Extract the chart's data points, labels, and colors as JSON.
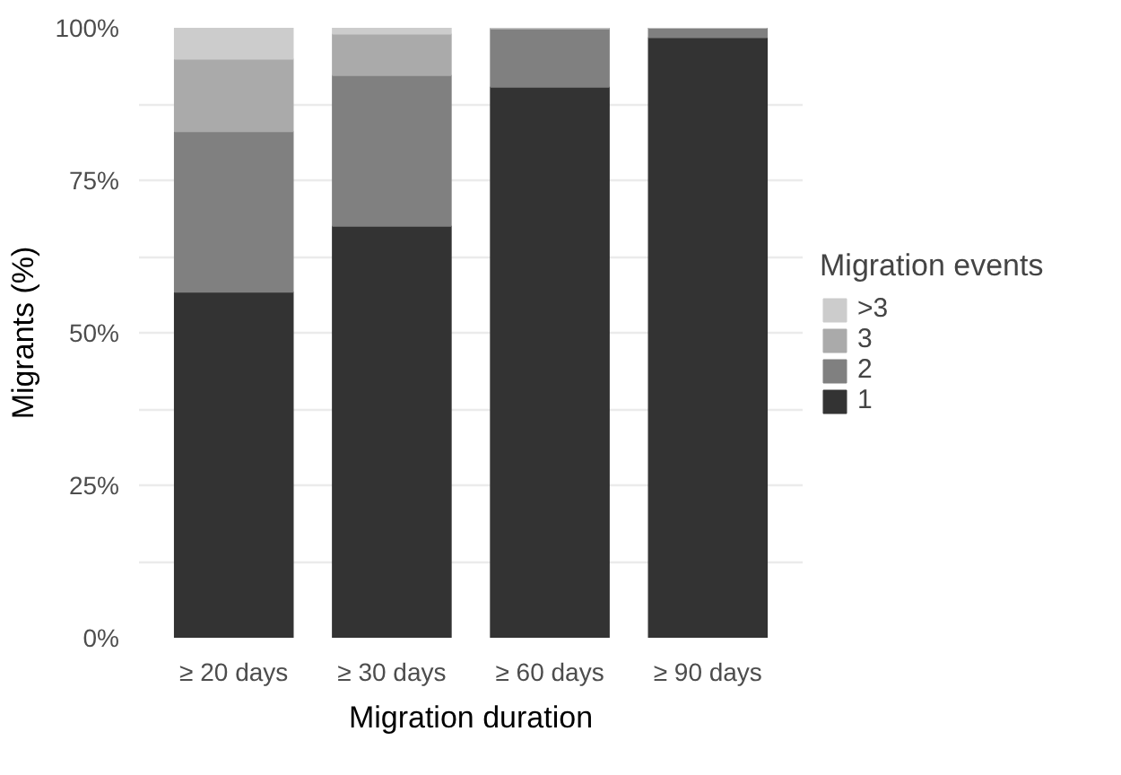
{
  "chart_data": {
    "type": "bar",
    "stacked": true,
    "xlabel": "Migration duration",
    "ylabel": "Migrants (%)",
    "legend_title": "Migration events",
    "categories": [
      "≥ 20 days",
      "≥ 30 days",
      "≥ 60 days",
      "≥ 90 days"
    ],
    "series": [
      {
        "name": "1",
        "color": "#333333",
        "values": [
          56.7,
          67.5,
          90.3,
          98.4
        ]
      },
      {
        "name": "2",
        "color": "#808080",
        "values": [
          26.3,
          24.7,
          9.5,
          1.6
        ]
      },
      {
        "name": "3",
        "color": "#aaaaaa",
        "values": [
          11.9,
          6.8,
          0.2,
          0
        ]
      },
      {
        "name": ">3",
        "color": "#cccccc",
        "values": [
          5.1,
          1.0,
          0,
          0
        ]
      }
    ],
    "ylim": [
      0,
      100
    ],
    "yticks": [
      {
        "value": 0,
        "label": "0%"
      },
      {
        "value": 12.5,
        "label": null
      },
      {
        "value": 25,
        "label": "25%"
      },
      {
        "value": 37.5,
        "label": null
      },
      {
        "value": 50,
        "label": "50%"
      },
      {
        "value": 62.5,
        "label": null
      },
      {
        "value": 75,
        "label": "75%"
      },
      {
        "value": 87.5,
        "label": null
      },
      {
        "value": 100,
        "label": "100%"
      }
    ],
    "grid": true,
    "legend": "right"
  }
}
